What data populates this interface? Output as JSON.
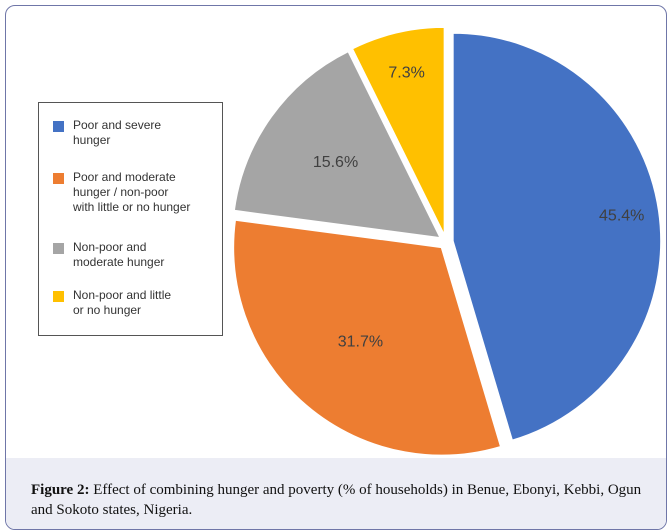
{
  "chart_data": {
    "type": "pie",
    "categories": [
      "Poor and severe hunger",
      "Poor and moderate hunger / non-poor with little or no hunger",
      "Non-poor and moderate hunger",
      "Non-poor and little or no hunger"
    ],
    "values": [
      45.4,
      31.7,
      15.6,
      7.3
    ],
    "data_labels": [
      "45.4%",
      "31.7%",
      "15.6%",
      "7.3%"
    ],
    "colors": [
      "#4472c4",
      "#ed7d31",
      "#a5a5a5",
      "#ffc000"
    ],
    "legend": {
      "position": "left",
      "entries": [
        "Poor and severe\nhunger",
        "Poor and moderate\nhunger / non-poor\nwith little or no hunger",
        "Non-poor and\nmoderate hunger",
        "Non-poor and little\nor no hunger"
      ]
    }
  },
  "caption": {
    "label": "Figure 2:",
    "text": " Effect of combining hunger and poverty (% of households) in Benue, Ebonyi, Kebbi, Ogun and Sokoto states, Nigeria."
  }
}
